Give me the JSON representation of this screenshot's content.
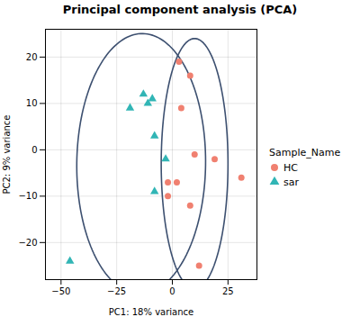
{
  "chart_data": {
    "type": "scatter",
    "title": "Principal component analysis (PCA)",
    "xlabel": "PC1: 18% variance",
    "ylabel": "PC2: 9% variance",
    "xlim": [
      -57,
      38
    ],
    "ylim": [
      -28,
      26
    ],
    "xticks": [
      -50,
      -25,
      0,
      25
    ],
    "yticks": [
      -20,
      -10,
      0,
      10,
      20
    ],
    "grid": true,
    "legend": "right",
    "legend_title": "Sample_Name",
    "series": [
      {
        "name": "HC",
        "color": "#F08070",
        "marker": "circle",
        "points": [
          [
            3,
            19
          ],
          [
            8,
            16
          ],
          [
            4,
            9
          ],
          [
            10,
            -1
          ],
          [
            19,
            -2
          ],
          [
            -2,
            -7
          ],
          [
            2,
            -7
          ],
          [
            31,
            -6
          ],
          [
            -2,
            -10
          ],
          [
            8,
            -12
          ],
          [
            12,
            -25
          ]
        ],
        "ellipse": {
          "cx": 10,
          "cy": -3,
          "width": 30,
          "height": 54,
          "angle": 0,
          "color": "#3d5070"
        }
      },
      {
        "name": "sar",
        "color": "#31B5B5",
        "marker": "triangle",
        "points": [
          [
            -46,
            -24
          ],
          [
            -19,
            9
          ],
          [
            -13,
            12
          ],
          [
            -9,
            11
          ],
          [
            -11,
            10
          ],
          [
            -8,
            3
          ],
          [
            -3,
            -2
          ],
          [
            -8,
            -9
          ]
        ],
        "ellipse": {
          "cx": -14,
          "cy": -3,
          "width": 58,
          "height": 56,
          "angle": 15,
          "color": "#3d5070"
        }
      }
    ]
  }
}
